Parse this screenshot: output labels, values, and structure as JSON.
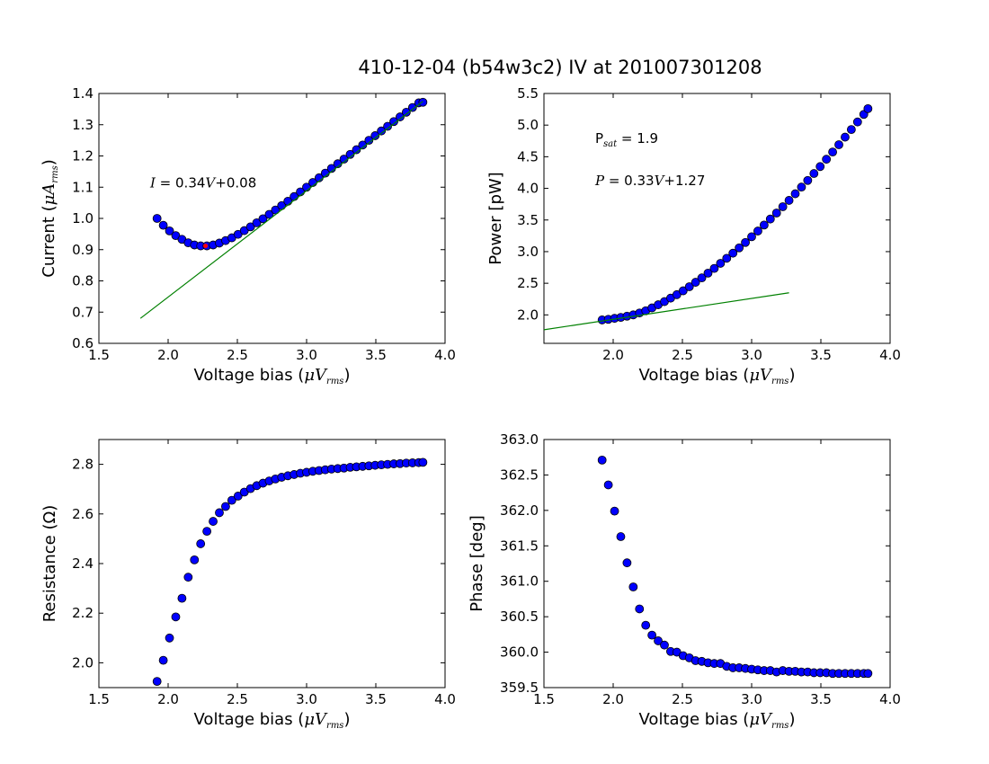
{
  "figure": {
    "title": "410-12-04 (b54w3c2) IV at 201007301208"
  },
  "colors": {
    "marker_fill": "#0000ff",
    "marker_edge": "#000000",
    "fit_line": "#008000",
    "highlight_marker": "#ff0000"
  },
  "chart_data": [
    {
      "type": "scatter",
      "id": "current",
      "xlabel": {
        "prefix": "Voltage bias (",
        "mu": "μ",
        "var": "V",
        "sub": "rms",
        "suffix": ")"
      },
      "ylabel": {
        "prefix": "Current (",
        "mu": "μ",
        "var": "A",
        "sub": "rms",
        "suffix": ")"
      },
      "xlim": [
        1.5,
        4.0
      ],
      "ylim": [
        0.6,
        1.4
      ],
      "xticks": [
        "1.5",
        "2.0",
        "2.5",
        "3.0",
        "3.5",
        "4.0"
      ],
      "yticks": [
        "0.6",
        "0.7",
        "0.8",
        "0.9",
        "1.0",
        "1.1",
        "1.2",
        "1.3",
        "1.4"
      ],
      "grid": false,
      "annotations": [
        {
          "lines": [
            {
              "var": "I",
              "text": " = 0.34",
              "var2": "V",
              "text2": "+0.08"
            }
          ],
          "at": [
            1.87,
            1.1
          ]
        }
      ],
      "fit_line": {
        "x": [
          1.8,
          3.84
        ],
        "y": [
          0.68,
          1.375
        ]
      },
      "highlight_x": 2.27,
      "x": [
        1.92,
        1.965,
        2.01,
        2.055,
        2.1,
        2.145,
        2.19,
        2.235,
        2.28,
        2.325,
        2.37,
        2.415,
        2.46,
        2.505,
        2.55,
        2.595,
        2.64,
        2.685,
        2.73,
        2.775,
        2.82,
        2.865,
        2.91,
        2.955,
        3.0,
        3.045,
        3.09,
        3.135,
        3.18,
        3.225,
        3.27,
        3.315,
        3.36,
        3.405,
        3.45,
        3.495,
        3.54,
        3.585,
        3.63,
        3.675,
        3.72,
        3.765,
        3.81,
        3.84
      ],
      "y": [
        1.0,
        0.978,
        0.96,
        0.945,
        0.933,
        0.922,
        0.915,
        0.912,
        0.912,
        0.915,
        0.921,
        0.929,
        0.938,
        0.949,
        0.961,
        0.973,
        0.986,
        0.999,
        1.013,
        1.027,
        1.041,
        1.055,
        1.07,
        1.085,
        1.1,
        1.115,
        1.13,
        1.145,
        1.16,
        1.175,
        1.19,
        1.205,
        1.22,
        1.235,
        1.25,
        1.265,
        1.28,
        1.295,
        1.31,
        1.325,
        1.34,
        1.355,
        1.37,
        1.372
      ]
    },
    {
      "type": "scatter",
      "id": "power",
      "xlabel": {
        "prefix": "Voltage bias (",
        "mu": "μ",
        "var": "V",
        "sub": "rms",
        "suffix": ")"
      },
      "ylabel": {
        "prefix": "Power [pW]",
        "mu": "",
        "var": "",
        "sub": "",
        "suffix": ""
      },
      "xlim": [
        1.5,
        4.0
      ],
      "ylim": [
        1.55,
        5.5
      ],
      "xticks": [
        "2.0",
        "2.5",
        "3.0",
        "3.5",
        "4.0"
      ],
      "xtick_values": [
        2.0,
        2.5,
        3.0,
        3.5,
        4.0
      ],
      "yticks": [
        "2.0",
        "2.5",
        "3.0",
        "3.5",
        "4.0",
        "4.5",
        "5.0",
        "5.5"
      ],
      "ytick_values": [
        2.0,
        2.5,
        3.0,
        3.5,
        4.0,
        4.5,
        5.0,
        5.5
      ],
      "grid": false,
      "annotations": [
        {
          "lines": [
            {
              "var": "",
              "text": "P",
              "sub": "sat",
              "text2": " = 1.9"
            }
          ],
          "at": [
            1.87,
            4.72
          ]
        },
        {
          "lines": [
            {
              "var": "P",
              "text": " = 0.33",
              "var2": "V",
              "text2": "+1.27"
            }
          ],
          "at": [
            1.87,
            4.05
          ]
        }
      ],
      "fit_line": {
        "x": [
          1.5,
          3.27
        ],
        "y": [
          1.765,
          2.349
        ]
      },
      "x": [
        1.92,
        1.965,
        2.01,
        2.055,
        2.1,
        2.145,
        2.19,
        2.235,
        2.28,
        2.325,
        2.37,
        2.415,
        2.46,
        2.505,
        2.55,
        2.595,
        2.64,
        2.685,
        2.73,
        2.775,
        2.82,
        2.865,
        2.91,
        2.955,
        3.0,
        3.045,
        3.09,
        3.135,
        3.18,
        3.225,
        3.27,
        3.315,
        3.36,
        3.405,
        3.45,
        3.495,
        3.54,
        3.585,
        3.63,
        3.675,
        3.72,
        3.765,
        3.81,
        3.84
      ],
      "y": [
        1.92,
        1.93,
        1.945,
        1.96,
        1.98,
        2.0,
        2.03,
        2.065,
        2.11,
        2.16,
        2.21,
        2.265,
        2.32,
        2.38,
        2.445,
        2.515,
        2.585,
        2.66,
        2.735,
        2.815,
        2.895,
        2.975,
        3.06,
        3.145,
        3.235,
        3.325,
        3.42,
        3.515,
        3.61,
        3.71,
        3.81,
        3.915,
        4.02,
        4.125,
        4.235,
        4.345,
        4.46,
        4.575,
        4.69,
        4.81,
        4.93,
        5.05,
        5.17,
        5.26
      ]
    },
    {
      "type": "scatter",
      "id": "resistance",
      "xlabel": {
        "prefix": "Voltage bias (",
        "mu": "μ",
        "var": "V",
        "sub": "rms",
        "suffix": ")"
      },
      "ylabel": {
        "prefix": "Resistance (Ω)",
        "mu": "",
        "var": "",
        "sub": "",
        "suffix": ""
      },
      "xlim": [
        1.5,
        4.0
      ],
      "ylim": [
        1.9,
        2.9
      ],
      "xticks": [
        "1.5",
        "2.0",
        "2.5",
        "3.0",
        "3.5",
        "4.0"
      ],
      "yticks": [
        "2.0",
        "2.2",
        "2.4",
        "2.6",
        "2.8"
      ],
      "ytick_values": [
        2.0,
        2.2,
        2.4,
        2.6,
        2.8
      ],
      "grid": false,
      "x": [
        1.92,
        1.965,
        2.01,
        2.055,
        2.1,
        2.145,
        2.19,
        2.235,
        2.28,
        2.325,
        2.37,
        2.415,
        2.46,
        2.505,
        2.55,
        2.595,
        2.64,
        2.685,
        2.73,
        2.775,
        2.82,
        2.865,
        2.91,
        2.955,
        3.0,
        3.045,
        3.09,
        3.135,
        3.18,
        3.225,
        3.27,
        3.315,
        3.36,
        3.405,
        3.45,
        3.495,
        3.54,
        3.585,
        3.63,
        3.675,
        3.72,
        3.765,
        3.81,
        3.84
      ],
      "y": [
        1.925,
        2.01,
        2.1,
        2.185,
        2.26,
        2.345,
        2.415,
        2.48,
        2.53,
        2.57,
        2.605,
        2.63,
        2.655,
        2.672,
        2.688,
        2.702,
        2.714,
        2.724,
        2.733,
        2.741,
        2.748,
        2.754,
        2.759,
        2.764,
        2.768,
        2.772,
        2.775,
        2.778,
        2.781,
        2.783,
        2.785,
        2.788,
        2.79,
        2.792,
        2.794,
        2.796,
        2.798,
        2.8,
        2.802,
        2.803,
        2.805,
        2.806,
        2.807,
        2.808
      ]
    },
    {
      "type": "scatter",
      "id": "phase",
      "xlabel": {
        "prefix": "Voltage bias (",
        "mu": "μ",
        "var": "V",
        "sub": "rms",
        "suffix": ")"
      },
      "ylabel": {
        "prefix": "Phase [deg]",
        "mu": "",
        "var": "",
        "sub": "",
        "suffix": ""
      },
      "xlim": [
        1.5,
        4.0
      ],
      "ylim": [
        359.5,
        363.0
      ],
      "xticks": [
        "1.5",
        "2.0",
        "2.5",
        "3.0",
        "3.5",
        "4.0"
      ],
      "yticks": [
        "359.5",
        "360.0",
        "360.5",
        "361.0",
        "361.5",
        "362.0",
        "362.5",
        "363.0"
      ],
      "grid": false,
      "x": [
        1.92,
        1.965,
        2.01,
        2.055,
        2.1,
        2.145,
        2.19,
        2.235,
        2.28,
        2.325,
        2.37,
        2.415,
        2.46,
        2.505,
        2.55,
        2.595,
        2.64,
        2.685,
        2.73,
        2.775,
        2.82,
        2.865,
        2.91,
        2.955,
        3.0,
        3.045,
        3.09,
        3.135,
        3.18,
        3.225,
        3.27,
        3.315,
        3.36,
        3.405,
        3.45,
        3.495,
        3.54,
        3.585,
        3.63,
        3.675,
        3.72,
        3.765,
        3.81,
        3.84
      ],
      "y": [
        362.71,
        362.36,
        361.99,
        361.63,
        361.26,
        360.92,
        360.61,
        360.38,
        360.24,
        360.16,
        360.1,
        360.01,
        360.0,
        359.95,
        359.92,
        359.88,
        359.87,
        359.85,
        359.84,
        359.84,
        359.8,
        359.78,
        359.78,
        359.77,
        359.76,
        359.75,
        359.74,
        359.74,
        359.72,
        359.74,
        359.73,
        359.73,
        359.72,
        359.72,
        359.71,
        359.71,
        359.71,
        359.7,
        359.7,
        359.7,
        359.7,
        359.7,
        359.7,
        359.7
      ]
    }
  ]
}
